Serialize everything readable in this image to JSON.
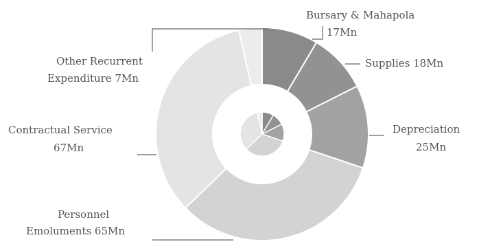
{
  "chart_data": {
    "type": "pie",
    "style": "donut-with-inner-pie",
    "categories": [
      "Bursary & Mahapola",
      "Supplies",
      "Depreciation",
      "Personnel Emoluments",
      "Contractual Service",
      "Other Recurrent Expenditure"
    ],
    "values": [
      17,
      18,
      25,
      65,
      67,
      7
    ],
    "unit": "Mn",
    "labels": [
      {
        "line1": "Bursary & Mahapola",
        "line2": "17Mn"
      },
      {
        "line1": "Supplies  18Mn",
        "line2": ""
      },
      {
        "line1": "Depreciation",
        "line2": "25Mn"
      },
      {
        "line1": "Personnel",
        "line2": "Emoluments  65Mn"
      },
      {
        "line1": "Contractual Service",
        "line2": "67Mn"
      },
      {
        "line1": "Other Recurrent",
        "line2": "Expenditure  7Mn"
      }
    ],
    "colors": [
      "#8a8a8a",
      "#929292",
      "#a2a2a2",
      "#d3d3d3",
      "#e4e4e4",
      "#ececec"
    ],
    "legend": "none",
    "grid": false
  }
}
